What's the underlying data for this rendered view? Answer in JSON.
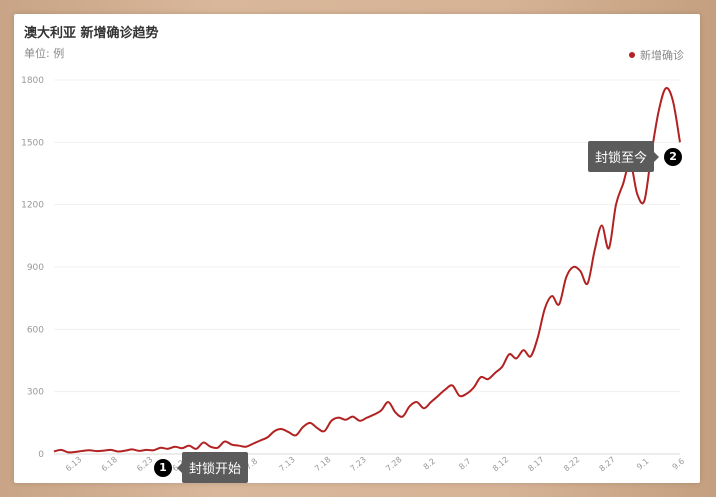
{
  "chart_data": {
    "type": "line",
    "title": "澳大利亚 新增确诊趋势",
    "unit_label": "单位: 例",
    "legend": {
      "label": "新增确诊",
      "placement": "top-right"
    },
    "color": "#b22222",
    "grid": true,
    "ylim": [
      0,
      1800
    ],
    "yticks": [
      0,
      300,
      600,
      900,
      1200,
      1500,
      1800
    ],
    "xticks": [
      "6.13",
      "6.18",
      "6.23",
      "6.28",
      "7.3",
      "7.8",
      "7.13",
      "7.18",
      "7.23",
      "7.28",
      "8.2",
      "8.7",
      "8.12",
      "8.17",
      "8.22",
      "8.27",
      "9.1",
      "9.6"
    ],
    "series": [
      {
        "name": "新增确诊",
        "x": [
          "6.10",
          "6.11",
          "6.12",
          "6.13",
          "6.14",
          "6.15",
          "6.16",
          "6.17",
          "6.18",
          "6.19",
          "6.20",
          "6.21",
          "6.22",
          "6.23",
          "6.24",
          "6.25",
          "6.26",
          "6.27",
          "6.28",
          "6.29",
          "6.30",
          "7.1",
          "7.2",
          "7.3",
          "7.4",
          "7.5",
          "7.6",
          "7.7",
          "7.8",
          "7.9",
          "7.10",
          "7.11",
          "7.12",
          "7.13",
          "7.14",
          "7.15",
          "7.16",
          "7.17",
          "7.18",
          "7.19",
          "7.20",
          "7.21",
          "7.22",
          "7.23",
          "7.24",
          "7.25",
          "7.26",
          "7.27",
          "7.28",
          "7.29",
          "7.30",
          "7.31",
          "8.1",
          "8.2",
          "8.3",
          "8.4",
          "8.5",
          "8.6",
          "8.7",
          "8.8",
          "8.9",
          "8.10",
          "8.11",
          "8.12",
          "8.13",
          "8.14",
          "8.15",
          "8.16",
          "8.17",
          "8.18",
          "8.19",
          "8.20",
          "8.21",
          "8.22",
          "8.23",
          "8.24",
          "8.25",
          "8.26",
          "8.27",
          "8.28",
          "8.29",
          "8.30",
          "8.31",
          "9.1",
          "9.2",
          "9.3",
          "9.4",
          "9.5",
          "9.6"
        ],
        "values": [
          12,
          20,
          8,
          10,
          15,
          18,
          14,
          16,
          20,
          12,
          16,
          22,
          15,
          20,
          18,
          30,
          25,
          35,
          28,
          40,
          25,
          55,
          35,
          30,
          60,
          45,
          40,
          35,
          50,
          65,
          80,
          110,
          120,
          105,
          90,
          130,
          150,
          125,
          110,
          160,
          175,
          165,
          180,
          160,
          175,
          190,
          210,
          250,
          200,
          180,
          230,
          250,
          220,
          250,
          280,
          310,
          330,
          280,
          290,
          320,
          370,
          360,
          390,
          420,
          480,
          460,
          500,
          470,
          560,
          700,
          760,
          720,
          850,
          900,
          880,
          820,
          980,
          1100,
          990,
          1200,
          1300,
          1400,
          1250,
          1220,
          1450,
          1650,
          1760,
          1700,
          1500
        ]
      }
    ],
    "annotations": [
      {
        "num": "1",
        "label": "封锁开始"
      },
      {
        "num": "2",
        "label": "封锁至今"
      }
    ]
  }
}
